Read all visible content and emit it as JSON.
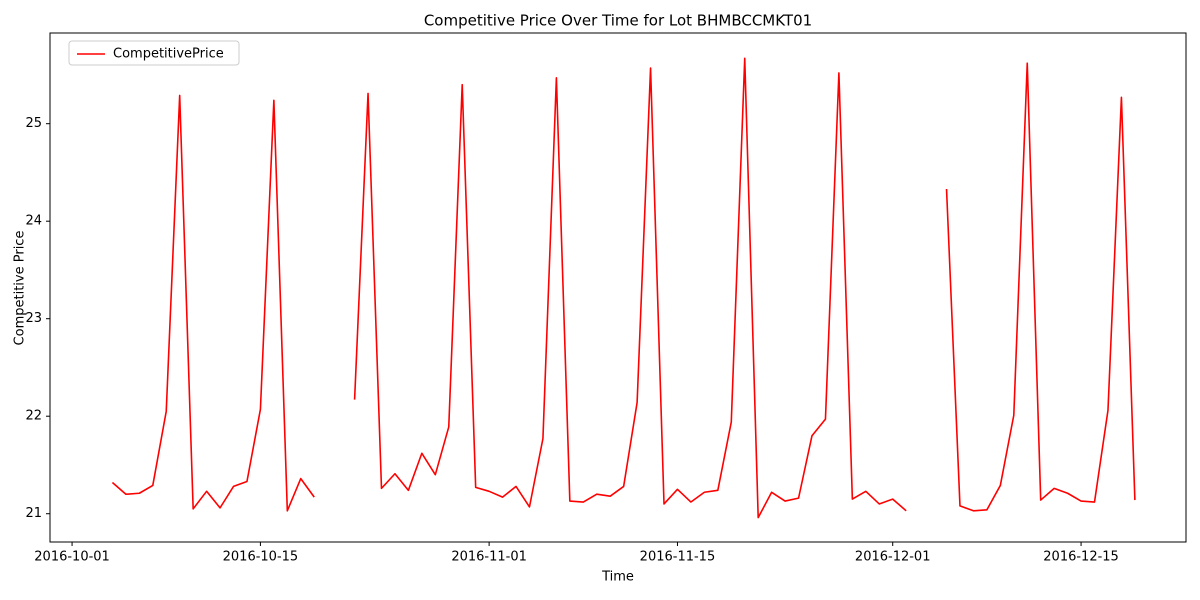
{
  "chart_data": {
    "type": "line",
    "title": "Competitive Price Over Time for Lot BHMBCCMKT01",
    "x_label": "Time",
    "y_label": "Competitive Price",
    "x": [
      "2016-10-04",
      "2016-10-05",
      "2016-10-06",
      "2016-10-07",
      "2016-10-08",
      "2016-10-09",
      "2016-10-10",
      "2016-10-11",
      "2016-10-12",
      "2016-10-13",
      "2016-10-14",
      "2016-10-15",
      "2016-10-16",
      "2016-10-17",
      "2016-10-18",
      "2016-10-19",
      "2016-10-20",
      "2016-10-21",
      "2016-10-22",
      "2016-10-23",
      "2016-10-24",
      "2016-10-25",
      "2016-10-26",
      "2016-10-27",
      "2016-10-28",
      "2016-10-29",
      "2016-10-30",
      "2016-10-31",
      "2016-11-01",
      "2016-11-02",
      "2016-11-03",
      "2016-11-04",
      "2016-11-05",
      "2016-11-06",
      "2016-11-07",
      "2016-11-08",
      "2016-11-09",
      "2016-11-10",
      "2016-11-11",
      "2016-11-12",
      "2016-11-13",
      "2016-11-14",
      "2016-11-15",
      "2016-11-16",
      "2016-11-17",
      "2016-11-18",
      "2016-11-19",
      "2016-11-20",
      "2016-11-21",
      "2016-11-22",
      "2016-11-23",
      "2016-11-24",
      "2016-11-25",
      "2016-11-26",
      "2016-11-27",
      "2016-11-28",
      "2016-11-29",
      "2016-11-30",
      "2016-12-01",
      "2016-12-02",
      "2016-12-03",
      "2016-12-04",
      "2016-12-05",
      "2016-12-06",
      "2016-12-07",
      "2016-12-08",
      "2016-12-09",
      "2016-12-10",
      "2016-12-11",
      "2016-12-12",
      "2016-12-13",
      "2016-12-14",
      "2016-12-15",
      "2016-12-16",
      "2016-12-17",
      "2016-12-18",
      "2016-12-19"
    ],
    "series": [
      {
        "name": "CompetitivePrice",
        "color": "#ff0000",
        "values": [
          21.32,
          21.2,
          21.21,
          21.29,
          22.05,
          25.29,
          21.05,
          21.23,
          21.06,
          21.28,
          21.33,
          22.07,
          25.24,
          21.03,
          21.36,
          21.17,
          null,
          null,
          22.17,
          25.31,
          21.26,
          21.41,
          21.24,
          21.62,
          21.4,
          21.89,
          25.4,
          21.27,
          21.23,
          21.17,
          21.28,
          21.07,
          21.77,
          25.47,
          21.13,
          21.12,
          21.2,
          21.18,
          21.28,
          22.14,
          25.57,
          21.1,
          21.25,
          21.12,
          21.22,
          21.24,
          21.94,
          25.67,
          20.96,
          21.22,
          21.13,
          21.16,
          21.8,
          21.97,
          25.52,
          21.15,
          21.23,
          21.1,
          21.15,
          21.03,
          null,
          null,
          24.33,
          21.08,
          21.03,
          21.04,
          21.29,
          22.01,
          25.62,
          21.14,
          21.26,
          21.21,
          21.13,
          21.12,
          22.06,
          25.27,
          21.14
        ]
      }
    ],
    "xlim": [
      "2016-09-29T08:38Z",
      "2016-12-22T19:12Z"
    ],
    "xticks": [
      "2016-10-01",
      "2016-10-15",
      "2016-11-01",
      "2016-11-15",
      "2016-12-01",
      "2016-12-15"
    ],
    "ylim": [
      20.71,
      25.93
    ],
    "yticks": [
      21,
      22,
      23,
      24,
      25
    ],
    "grid": false,
    "legend": "upper-left"
  }
}
